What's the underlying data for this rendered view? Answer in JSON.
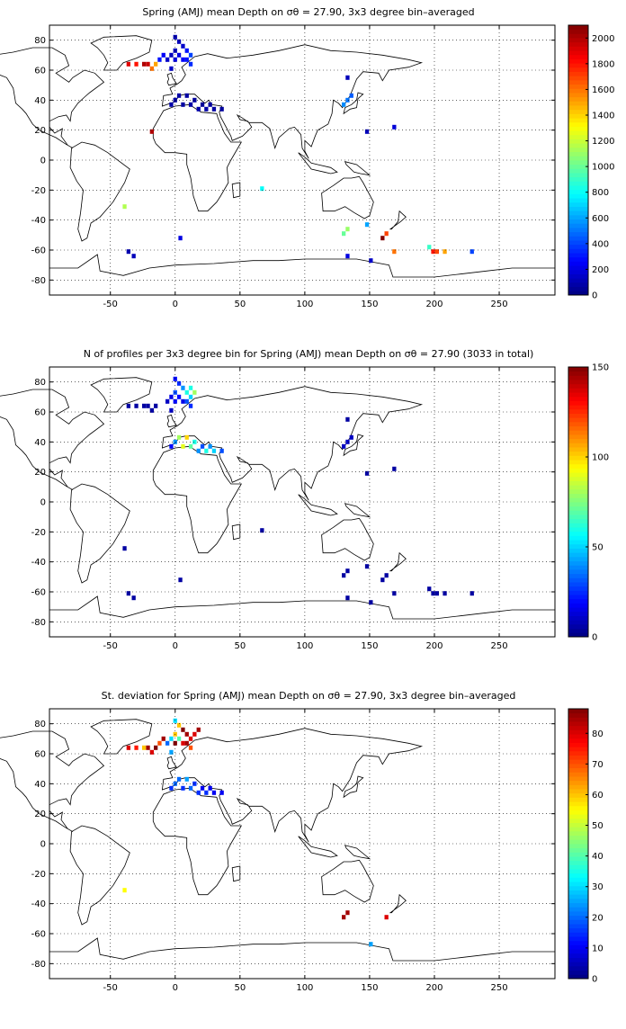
{
  "panels": [
    {
      "title": "Spring (AMJ) mean Depth on σθ = 27.90, 3x3 degree bin–averaged",
      "colorbar_ticks": [
        0,
        200,
        400,
        600,
        800,
        1000,
        1200,
        1400,
        1600,
        1800,
        2000
      ],
      "colorbar_max": 2100
    },
    {
      "title": "N of profiles per 3x3 degree bin for Spring (AMJ) mean Depth on σθ = 27.90 (3033 in total)",
      "colorbar_ticks": [
        0,
        50,
        100,
        150
      ],
      "colorbar_max": 150
    },
    {
      "title": "St. deviation for Spring (AMJ) mean Depth on σθ = 27.90, 3x3 degree bin–averaged",
      "colorbar_ticks": [
        0,
        10,
        20,
        30,
        40,
        50,
        60,
        70,
        80
      ],
      "colorbar_max": 88
    }
  ],
  "axes": {
    "x_ticks": [
      -50,
      0,
      50,
      100,
      150,
      200,
      250
    ],
    "y_ticks": [
      80,
      60,
      40,
      20,
      0,
      -20,
      -40,
      -60,
      -80
    ],
    "xlim": [
      -97,
      293
    ],
    "ylim": [
      -90,
      90
    ]
  },
  "chart_data": [
    {
      "type": "heatmap",
      "title": "Spring (AMJ) mean Depth on σθ = 27.90, 3x3 degree bin–averaged",
      "xlim": [
        -97,
        293
      ],
      "ylim": [
        -90,
        90
      ],
      "clim": [
        0,
        2100
      ],
      "grid": true,
      "cells": [
        [
          -36,
          64,
          1900
        ],
        [
          -30,
          64,
          1800
        ],
        [
          -24,
          64,
          2000
        ],
        [
          -21,
          64,
          1950
        ],
        [
          -18,
          61,
          1600
        ],
        [
          -15,
          64,
          1500
        ],
        [
          -12,
          67,
          300
        ],
        [
          -9,
          70,
          250
        ],
        [
          0,
          82,
          100
        ],
        [
          3,
          79,
          120
        ],
        [
          6,
          76,
          150
        ],
        [
          9,
          73,
          300
        ],
        [
          12,
          70,
          400
        ],
        [
          0,
          73,
          120
        ],
        [
          3,
          70,
          200
        ],
        [
          6,
          67,
          250
        ],
        [
          -6,
          67,
          150
        ],
        [
          -3,
          70,
          130
        ],
        [
          0,
          67,
          200
        ],
        [
          9,
          67,
          300
        ],
        [
          12,
          64,
          350
        ],
        [
          -3,
          61,
          150
        ],
        [
          0,
          40,
          80
        ],
        [
          6,
          37,
          70
        ],
        [
          12,
          37,
          80
        ],
        [
          18,
          34,
          90
        ],
        [
          24,
          34,
          80
        ],
        [
          30,
          34,
          70
        ],
        [
          36,
          34,
          60
        ],
        [
          3,
          43,
          80
        ],
        [
          9,
          43,
          70
        ],
        [
          15,
          40,
          60
        ],
        [
          21,
          37,
          50
        ],
        [
          27,
          37,
          60
        ],
        [
          -3,
          37,
          90
        ],
        [
          -18,
          19,
          2000
        ],
        [
          130,
          37,
          550
        ],
        [
          133,
          40,
          500
        ],
        [
          136,
          43,
          450
        ],
        [
          133,
          55,
          120
        ],
        [
          148,
          19,
          120
        ],
        [
          169,
          22,
          180
        ],
        [
          67,
          -19,
          800
        ],
        [
          -39,
          -31,
          1150
        ],
        [
          130,
          -49,
          1000
        ],
        [
          133,
          -46,
          1100
        ],
        [
          148,
          -43,
          600
        ],
        [
          160,
          -52,
          2100
        ],
        [
          163,
          -49,
          1700
        ],
        [
          169,
          -61,
          1600
        ],
        [
          196,
          -58,
          900
        ],
        [
          199,
          -61,
          1800
        ],
        [
          202,
          -61,
          1700
        ],
        [
          208,
          -61,
          1500
        ],
        [
          229,
          -61,
          400
        ],
        [
          4,
          -52,
          200
        ],
        [
          -36,
          -61,
          100
        ],
        [
          -32,
          -64,
          120
        ],
        [
          151,
          -67,
          150
        ],
        [
          133,
          -64,
          200
        ]
      ]
    },
    {
      "type": "heatmap",
      "title": "N of profiles per 3x3 degree bin for Spring (AMJ) mean Depth on σθ = 27.90 (3033 in total)",
      "xlim": [
        -97,
        293
      ],
      "ylim": [
        -90,
        90
      ],
      "clim": [
        0,
        150
      ],
      "grid": true,
      "cells": [
        [
          0,
          82,
          20
        ],
        [
          3,
          79,
          25
        ],
        [
          6,
          76,
          40
        ],
        [
          9,
          73,
          60
        ],
        [
          12,
          70,
          50
        ],
        [
          0,
          73,
          30
        ],
        [
          3,
          70,
          20
        ],
        [
          6,
          67,
          15
        ],
        [
          -6,
          67,
          10
        ],
        [
          -3,
          70,
          15
        ],
        [
          0,
          67,
          20
        ],
        [
          9,
          67,
          30
        ],
        [
          12,
          64,
          25
        ],
        [
          -3,
          61,
          10
        ],
        [
          15,
          73,
          80
        ],
        [
          12,
          76,
          60
        ],
        [
          0,
          40,
          40
        ],
        [
          6,
          37,
          90
        ],
        [
          12,
          37,
          70
        ],
        [
          18,
          34,
          40
        ],
        [
          24,
          34,
          60
        ],
        [
          30,
          34,
          50
        ],
        [
          36,
          34,
          30
        ],
        [
          3,
          43,
          80
        ],
        [
          9,
          43,
          100
        ],
        [
          15,
          40,
          60
        ],
        [
          21,
          37,
          30
        ],
        [
          27,
          37,
          40
        ],
        [
          -3,
          37,
          20
        ],
        [
          -36,
          64,
          5
        ],
        [
          -30,
          64,
          5
        ],
        [
          -24,
          64,
          5
        ],
        [
          -21,
          64,
          5
        ],
        [
          -18,
          61,
          5
        ],
        [
          -15,
          64,
          5
        ],
        [
          130,
          37,
          10
        ],
        [
          133,
          40,
          10
        ],
        [
          136,
          43,
          10
        ],
        [
          133,
          55,
          5
        ],
        [
          148,
          19,
          5
        ],
        [
          169,
          22,
          5
        ],
        [
          67,
          -19,
          5
        ],
        [
          -39,
          -31,
          5
        ],
        [
          130,
          -49,
          5
        ],
        [
          133,
          -46,
          5
        ],
        [
          148,
          -43,
          5
        ],
        [
          160,
          -52,
          5
        ],
        [
          163,
          -49,
          5
        ],
        [
          169,
          -61,
          5
        ],
        [
          196,
          -58,
          5
        ],
        [
          199,
          -61,
          5
        ],
        [
          202,
          -61,
          5
        ],
        [
          208,
          -61,
          5
        ],
        [
          229,
          -61,
          5
        ],
        [
          4,
          -52,
          5
        ],
        [
          -36,
          -61,
          5
        ],
        [
          -32,
          -64,
          5
        ],
        [
          151,
          -67,
          5
        ],
        [
          133,
          -64,
          5
        ]
      ]
    },
    {
      "type": "heatmap",
      "title": "St. deviation for Spring (AMJ) mean Depth on σθ = 27.90, 3x3 degree bin–averaged",
      "xlim": [
        -97,
        293
      ],
      "ylim": [
        -90,
        90
      ],
      "clim": [
        0,
        88
      ],
      "grid": true,
      "cells": [
        [
          -36,
          64,
          80
        ],
        [
          -30,
          64,
          75
        ],
        [
          -24,
          64,
          60
        ],
        [
          -21,
          64,
          85
        ],
        [
          -18,
          61,
          80
        ],
        [
          -15,
          64,
          88
        ],
        [
          -12,
          67,
          70
        ],
        [
          -9,
          70,
          85
        ],
        [
          0,
          82,
          30
        ],
        [
          3,
          79,
          60
        ],
        [
          6,
          76,
          88
        ],
        [
          9,
          73,
          85
        ],
        [
          12,
          70,
          80
        ],
        [
          0,
          73,
          60
        ],
        [
          3,
          70,
          40
        ],
        [
          6,
          67,
          80
        ],
        [
          -6,
          67,
          20
        ],
        [
          -3,
          70,
          30
        ],
        [
          0,
          67,
          88
        ],
        [
          9,
          67,
          85
        ],
        [
          12,
          64,
          70
        ],
        [
          -3,
          61,
          25
        ],
        [
          15,
          73,
          80
        ],
        [
          18,
          76,
          85
        ],
        [
          0,
          40,
          20
        ],
        [
          6,
          37,
          15
        ],
        [
          12,
          37,
          20
        ],
        [
          18,
          34,
          15
        ],
        [
          24,
          34,
          15
        ],
        [
          30,
          34,
          10
        ],
        [
          36,
          34,
          10
        ],
        [
          3,
          43,
          20
        ],
        [
          9,
          43,
          25
        ],
        [
          15,
          40,
          15
        ],
        [
          21,
          37,
          10
        ],
        [
          27,
          37,
          10
        ],
        [
          -3,
          37,
          15
        ],
        [
          -39,
          -31,
          55
        ],
        [
          130,
          -49,
          85
        ],
        [
          163,
          -49,
          80
        ],
        [
          133,
          -46,
          85
        ],
        [
          151,
          -67,
          25
        ]
      ]
    }
  ]
}
